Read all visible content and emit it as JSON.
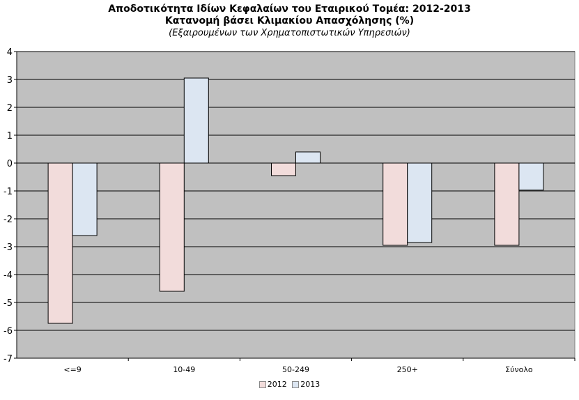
{
  "title": {
    "line1": "Αποδοτικότητα Ιδίων Κεφαλαίων του Εταιρικού Τομέα: 2012-2013",
    "line2": "Κατανομή βάσει Κλιμακίου Απασχόλησης (%)",
    "line3": "(Εξαιρουμένων των Χρηματοπιστωτικών Υπηρεσιών)"
  },
  "colors": {
    "plot_bg": "#c0c0c0",
    "grid": "#000000",
    "series_2012": "#f2dcdb",
    "series_2013": "#dce6f2",
    "bar_border": "#000000"
  },
  "chart_data": {
    "type": "bar",
    "categories": [
      "<=9",
      "10-49",
      "50-249",
      "250+",
      "Σύνολο"
    ],
    "series": [
      {
        "name": "2012",
        "values": [
          -5.75,
          -4.6,
          -0.45,
          -2.95,
          -2.95
        ]
      },
      {
        "name": "2013",
        "values": [
          -2.6,
          3.05,
          0.4,
          -2.85,
          -0.97
        ]
      }
    ],
    "title": "Αποδοτικότητα Ιδίων Κεφαλαίων του Εταιρικού Τομέα: 2012-2013",
    "subtitle": "Κατανομή βάσει Κλιμακίου Απασχόλησης (%)",
    "xlabel": "",
    "ylabel": "",
    "ylim": [
      -7,
      4
    ],
    "yticks": [
      4,
      3,
      2,
      1,
      0,
      -1,
      -2,
      -3,
      -4,
      -5,
      -6,
      -7
    ],
    "grid": true,
    "legend_position": "bottom"
  }
}
